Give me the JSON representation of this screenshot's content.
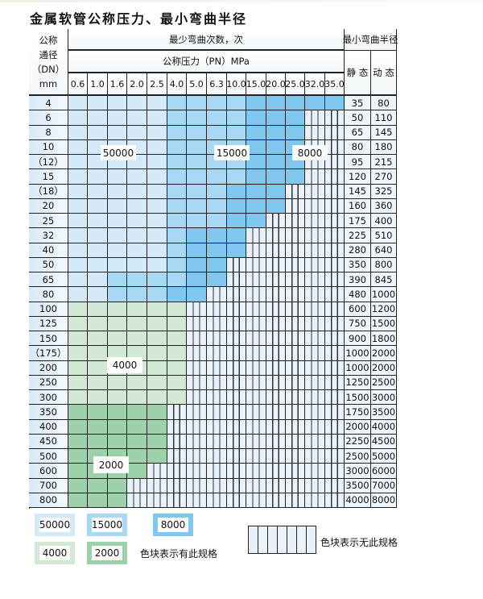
{
  "title": "金属软管公称压力、最小弯曲半径",
  "header": {
    "dn_label_lines": [
      "公称",
      "通径",
      "（DN）",
      "mm"
    ],
    "bend_count_label": "最少弯曲次数，次",
    "pressure_label": "公称压力（PN）MPa",
    "radius_label": "最小弯曲半径",
    "static_label": "静 态",
    "dynamic_label": "动 态",
    "pressures": [
      "0.6",
      "1.0",
      "1.6",
      "2.0",
      "2.5",
      "4.0",
      "5.0",
      "6.3",
      "10.0",
      "15.0",
      "20.0",
      "25.0",
      "32.0",
      "35.0"
    ]
  },
  "colors": {
    "50000": "#d4eaf9",
    "15000": "#a9d8f4",
    "8000": "#7fc7ee",
    "4000": "#d3e9d6",
    "2000": "#9dd1aa",
    "unavailable": "#e9f2fa"
  },
  "rows": [
    {
      "dn": "4",
      "static": "35",
      "dynamic": "80",
      "cells": [
        50000,
        50000,
        50000,
        50000,
        50000,
        15000,
        15000,
        15000,
        15000,
        8000,
        8000,
        8000,
        8000,
        8000
      ]
    },
    {
      "dn": "6",
      "static": "50",
      "dynamic": "110",
      "cells": [
        50000,
        50000,
        50000,
        50000,
        50000,
        15000,
        15000,
        15000,
        15000,
        8000,
        8000,
        8000,
        null,
        null
      ]
    },
    {
      "dn": "8",
      "static": "65",
      "dynamic": "145",
      "cells": [
        50000,
        50000,
        50000,
        50000,
        50000,
        15000,
        15000,
        15000,
        15000,
        8000,
        8000,
        8000,
        null,
        null
      ]
    },
    {
      "dn": "10",
      "static": "80",
      "dynamic": "180",
      "cells": [
        50000,
        50000,
        50000,
        50000,
        50000,
        15000,
        15000,
        15000,
        15000,
        8000,
        8000,
        8000,
        null,
        null
      ]
    },
    {
      "dn": "（12）",
      "static": "95",
      "dynamic": "215",
      "cells": [
        50000,
        50000,
        50000,
        50000,
        50000,
        15000,
        15000,
        15000,
        15000,
        8000,
        8000,
        8000,
        null,
        null
      ]
    },
    {
      "dn": "15",
      "static": "120",
      "dynamic": "270",
      "cells": [
        50000,
        50000,
        50000,
        50000,
        50000,
        15000,
        15000,
        15000,
        15000,
        8000,
        8000,
        8000,
        null,
        null
      ]
    },
    {
      "dn": "（18）",
      "static": "145",
      "dynamic": "325",
      "cells": [
        50000,
        50000,
        50000,
        50000,
        50000,
        15000,
        15000,
        15000,
        8000,
        8000,
        8000,
        null,
        null,
        null
      ]
    },
    {
      "dn": "20",
      "static": "160",
      "dynamic": "360",
      "cells": [
        50000,
        50000,
        50000,
        50000,
        50000,
        15000,
        15000,
        15000,
        8000,
        8000,
        8000,
        null,
        null,
        null
      ]
    },
    {
      "dn": "25",
      "static": "175",
      "dynamic": "400",
      "cells": [
        50000,
        50000,
        50000,
        50000,
        50000,
        15000,
        15000,
        15000,
        8000,
        8000,
        null,
        null,
        null,
        null
      ]
    },
    {
      "dn": "32",
      "static": "225",
      "dynamic": "510",
      "cells": [
        50000,
        50000,
        50000,
        50000,
        50000,
        15000,
        8000,
        8000,
        8000,
        null,
        null,
        null,
        null,
        null
      ]
    },
    {
      "dn": "40",
      "static": "280",
      "dynamic": "640",
      "cells": [
        50000,
        50000,
        50000,
        50000,
        50000,
        15000,
        8000,
        8000,
        8000,
        null,
        null,
        null,
        null,
        null
      ]
    },
    {
      "dn": "50",
      "static": "350",
      "dynamic": "800",
      "cells": [
        50000,
        50000,
        50000,
        50000,
        50000,
        15000,
        8000,
        8000,
        null,
        null,
        null,
        null,
        null,
        null
      ]
    },
    {
      "dn": "65",
      "static": "390",
      "dynamic": "845",
      "cells": [
        50000,
        50000,
        15000,
        15000,
        15000,
        15000,
        8000,
        8000,
        null,
        null,
        null,
        null,
        null,
        null
      ]
    },
    {
      "dn": "80",
      "static": "480",
      "dynamic": "1000",
      "cells": [
        50000,
        50000,
        15000,
        15000,
        15000,
        8000,
        8000,
        null,
        null,
        null,
        null,
        null,
        null,
        null
      ]
    },
    {
      "dn": "100",
      "static": "600",
      "dynamic": "1200",
      "cells": [
        4000,
        4000,
        4000,
        4000,
        4000,
        4000,
        null,
        null,
        null,
        null,
        null,
        null,
        null,
        null
      ]
    },
    {
      "dn": "125",
      "static": "750",
      "dynamic": "1500",
      "cells": [
        4000,
        4000,
        4000,
        4000,
        4000,
        4000,
        null,
        null,
        null,
        null,
        null,
        null,
        null,
        null
      ]
    },
    {
      "dn": "150",
      "static": "900",
      "dynamic": "1800",
      "cells": [
        4000,
        4000,
        4000,
        4000,
        4000,
        4000,
        null,
        null,
        null,
        null,
        null,
        null,
        null,
        null
      ]
    },
    {
      "dn": "（175）",
      "static": "1000",
      "dynamic": "2000",
      "cells": [
        4000,
        4000,
        4000,
        4000,
        4000,
        4000,
        null,
        null,
        null,
        null,
        null,
        null,
        null,
        null
      ]
    },
    {
      "dn": "200",
      "static": "1000",
      "dynamic": "2000",
      "cells": [
        4000,
        4000,
        4000,
        4000,
        4000,
        4000,
        null,
        null,
        null,
        null,
        null,
        null,
        null,
        null
      ]
    },
    {
      "dn": "250",
      "static": "1250",
      "dynamic": "2500",
      "cells": [
        4000,
        4000,
        4000,
        4000,
        4000,
        4000,
        null,
        null,
        null,
        null,
        null,
        null,
        null,
        null
      ]
    },
    {
      "dn": "300",
      "static": "1500",
      "dynamic": "3000",
      "cells": [
        4000,
        4000,
        4000,
        4000,
        4000,
        4000,
        null,
        null,
        null,
        null,
        null,
        null,
        null,
        null
      ]
    },
    {
      "dn": "350",
      "static": "1750",
      "dynamic": "3500",
      "cells": [
        2000,
        2000,
        2000,
        2000,
        2000,
        null,
        null,
        null,
        null,
        null,
        null,
        null,
        null,
        null
      ]
    },
    {
      "dn": "400",
      "static": "2000",
      "dynamic": "4000",
      "cells": [
        2000,
        2000,
        2000,
        2000,
        2000,
        null,
        null,
        null,
        null,
        null,
        null,
        null,
        null,
        null
      ]
    },
    {
      "dn": "450",
      "static": "2250",
      "dynamic": "4500",
      "cells": [
        2000,
        2000,
        2000,
        2000,
        2000,
        null,
        null,
        null,
        null,
        null,
        null,
        null,
        null,
        null
      ]
    },
    {
      "dn": "500",
      "static": "2500",
      "dynamic": "5000",
      "cells": [
        2000,
        2000,
        2000,
        2000,
        2000,
        null,
        null,
        null,
        null,
        null,
        null,
        null,
        null,
        null
      ]
    },
    {
      "dn": "600",
      "static": "3000",
      "dynamic": "6000",
      "cells": [
        2000,
        2000,
        2000,
        2000,
        null,
        null,
        null,
        null,
        null,
        null,
        null,
        null,
        null,
        null
      ]
    },
    {
      "dn": "700",
      "static": "3500",
      "dynamic": "7000",
      "cells": [
        2000,
        2000,
        2000,
        null,
        null,
        null,
        null,
        null,
        null,
        null,
        null,
        null,
        null,
        null
      ]
    },
    {
      "dn": "800",
      "static": "4000",
      "dynamic": "8000",
      "cells": [
        2000,
        2000,
        2000,
        null,
        null,
        null,
        null,
        null,
        null,
        null,
        null,
        null,
        null,
        null
      ]
    }
  ],
  "region_labels": [
    "50000",
    "15000",
    "8000",
    "4000",
    "2000"
  ],
  "legend": {
    "items": [
      "50000",
      "15000",
      "8000",
      "4000",
      "2000"
    ],
    "available_text": "色块表示有此规格",
    "unavailable_text": "色块表示无此规格"
  }
}
